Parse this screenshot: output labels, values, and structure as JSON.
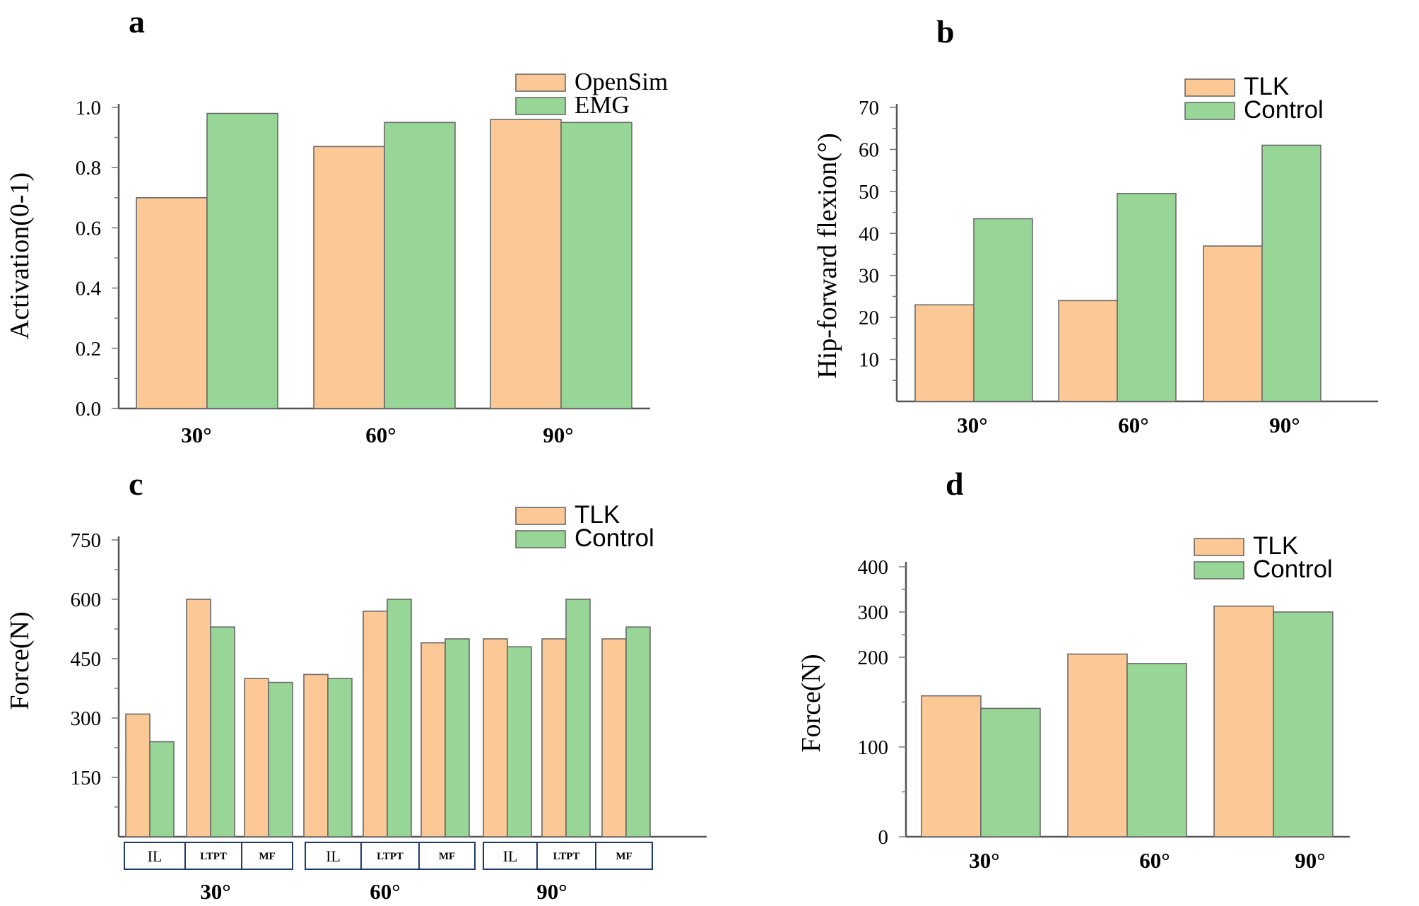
{
  "colors": {
    "tlk": "#fcc996",
    "control": "#98d698",
    "edge": "#6a6a6a"
  },
  "chart_data": [
    {
      "panel": "a",
      "type": "bar",
      "categories": [
        "30°",
        "60°",
        "90°"
      ],
      "ylabel": "Activation(0-1)",
      "ylim": [
        0,
        1.0
      ],
      "yticks": [
        "0.0",
        "0.2",
        "0.4",
        "0.6",
        "0.8",
        "1.0"
      ],
      "legend_position": "top-right",
      "series": [
        {
          "name": "OpenSim",
          "values": [
            0.7,
            0.87,
            0.96
          ]
        },
        {
          "name": "EMG",
          "values": [
            0.98,
            0.95,
            0.95
          ]
        }
      ]
    },
    {
      "panel": "b",
      "type": "bar",
      "categories": [
        "30°",
        "60°",
        "90°"
      ],
      "ylabel": "Hip-forward flexion(°)",
      "ylim": [
        0,
        70
      ],
      "yticks": [
        "10",
        "20",
        "30",
        "40",
        "50",
        "60",
        "70"
      ],
      "legend_position": "top-right",
      "series": [
        {
          "name": "TLK",
          "values": [
            23,
            24,
            37
          ]
        },
        {
          "name": "Control",
          "values": [
            43.5,
            49.5,
            61
          ]
        }
      ]
    },
    {
      "panel": "c",
      "type": "bar",
      "groups": [
        "30°",
        "60°",
        "90°"
      ],
      "categories": [
        "IL",
        "LTPT",
        "MF",
        "IL",
        "LTPT",
        "MF",
        "IL",
        "LTPT",
        "MF"
      ],
      "ylabel": "Force(N)",
      "ylim": [
        0,
        750
      ],
      "yticks": [
        "150",
        "300",
        "450",
        "600",
        "750"
      ],
      "legend_position": "top-right",
      "series": [
        {
          "name": "TLK",
          "values": [
            310,
            600,
            400,
            410,
            570,
            490,
            500,
            500,
            500
          ]
        },
        {
          "name": "Control",
          "values": [
            240,
            530,
            390,
            400,
            600,
            500,
            480,
            600,
            530
          ]
        }
      ]
    },
    {
      "panel": "d",
      "type": "bar",
      "categories": [
        "30°",
        "60°",
        "90°"
      ],
      "ylabel": "Force(N)",
      "ylim": [
        0,
        400
      ],
      "yticks": [
        "0",
        "100",
        "200",
        "300",
        "400"
      ],
      "legend_position": "top-right",
      "series": [
        {
          "name": "TLK",
          "values": [
            157,
            207,
            313
          ]
        },
        {
          "name": "Control",
          "values": [
            143,
            193,
            300
          ]
        }
      ]
    }
  ]
}
